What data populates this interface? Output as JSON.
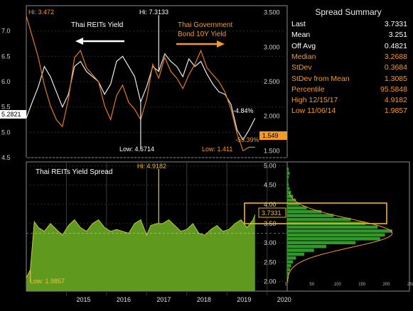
{
  "colors": {
    "background": "#000000",
    "reits_line": "#e9e9e9",
    "bond_line": "#e07b1c",
    "spread_fill": "#5f9a1f",
    "spread_line": "#c8c24a",
    "highlight": "#f0b428",
    "panel_border": "#8a8a8a"
  },
  "summary": {
    "title": "Spread Summary",
    "rows": [
      {
        "label": "Last",
        "value": "3.7331",
        "color": "white"
      },
      {
        "label": "Mean",
        "value": "3.251",
        "color": "white"
      },
      {
        "label": "Off Avg",
        "value": "0.4821",
        "color": "white"
      },
      {
        "label": "Median",
        "value": "3.2688",
        "color": "orange"
      },
      {
        "label": "StDev",
        "value": "0.3684",
        "color": "orange"
      },
      {
        "label": "StDev from Mean",
        "value": "1.3085",
        "color": "orange"
      },
      {
        "label": "Percentile",
        "value": "95.5848",
        "color": "orange"
      },
      {
        "label": "High 12/15/17",
        "value": "4.9182",
        "color": "orange"
      },
      {
        "label": "Low 11/06/14",
        "value": "1.9857",
        "color": "orange"
      }
    ]
  },
  "chart_data": [
    {
      "type": "line",
      "x_range": [
        2014.0,
        2020.5
      ],
      "left_axis": {
        "ylim": [
          4.5,
          7.5
        ],
        "ticks": [
          "4.5",
          "5.0",
          "5.5",
          "6.0",
          "6.5",
          "7.0"
        ]
      },
      "right_axis": {
        "ylim": [
          1.4,
          3.6
        ],
        "ticks": [
          "1.500",
          "2.000",
          "2.500",
          "3.000",
          "3.500"
        ]
      },
      "series": [
        {
          "name": "Thai REITs Yield",
          "axis": "left",
          "x": [
            2014.0,
            2014.15,
            2014.3,
            2014.45,
            2014.6,
            2014.75,
            2014.9,
            2015.05,
            2015.2,
            2015.35,
            2015.5,
            2015.65,
            2015.8,
            2015.95,
            2016.1,
            2016.25,
            2016.4,
            2016.55,
            2016.7,
            2016.85,
            2017.0,
            2017.15,
            2017.3,
            2017.45,
            2017.6,
            2017.75,
            2017.9,
            2018.05,
            2018.2,
            2018.35,
            2018.5,
            2018.65,
            2018.8,
            2018.95,
            2019.1,
            2019.25,
            2019.4,
            2019.55,
            2019.7
          ],
          "y": [
            5.28,
            5.6,
            5.9,
            6.3,
            6.1,
            5.8,
            5.5,
            5.75,
            6.3,
            6.4,
            6.2,
            6.1,
            6.0,
            5.75,
            5.95,
            6.4,
            6.5,
            6.3,
            6.1,
            5.6,
            5.9,
            6.3,
            6.2,
            6.55,
            6.4,
            6.3,
            6.1,
            6.45,
            6.3,
            6.4,
            6.15,
            5.95,
            5.8,
            5.75,
            5.55,
            5.05,
            4.85,
            5.05,
            5.28
          ]
        },
        {
          "name": "Thai Government Bond 10Y Yield",
          "axis": "right",
          "x": [
            2014.0,
            2014.15,
            2014.3,
            2014.45,
            2014.6,
            2014.75,
            2014.9,
            2015.05,
            2015.2,
            2015.35,
            2015.5,
            2015.65,
            2015.8,
            2015.95,
            2016.1,
            2016.25,
            2016.4,
            2016.55,
            2016.7,
            2016.85,
            2017.0,
            2017.15,
            2017.3,
            2017.45,
            2017.6,
            2017.75,
            2017.9,
            2018.05,
            2018.2,
            2018.35,
            2018.5,
            2018.65,
            2018.8,
            2018.95,
            2019.1,
            2019.25,
            2019.4,
            2019.55,
            2019.7
          ],
          "y": [
            3.45,
            3.15,
            2.85,
            2.45,
            2.15,
            1.95,
            1.85,
            2.25,
            2.85,
            2.95,
            2.7,
            2.6,
            2.5,
            2.15,
            1.95,
            2.3,
            2.45,
            2.2,
            2.1,
            1.95,
            2.25,
            2.75,
            2.55,
            2.85,
            2.65,
            2.55,
            2.4,
            2.6,
            2.75,
            2.95,
            2.7,
            2.6,
            2.5,
            2.35,
            2.1,
            1.75,
            1.5,
            1.55,
            1.55
          ]
        }
      ],
      "labels": {
        "hi_left": "Hi: 3.472",
        "hi_mid": "Hi: 7.3133",
        "low_mid": "Low: 4.6714",
        "low_right": "Low: 1.411",
        "reits_tag": "Thai REITs Yield",
        "bond_tag_line1": "Thai Government",
        "bond_tag_line2": "Bond 10Y Yield",
        "last_left": "5.2821",
        "last_right": "1.549",
        "chg_white": "-4.84%",
        "chg_orange": "-55.39%"
      }
    },
    {
      "type": "area",
      "title": "Thai REITs Yield Spread",
      "x_range": [
        2014.0,
        2020.5
      ],
      "x_ticks": [
        "2015",
        "2016",
        "2017",
        "2018",
        "2019",
        "2020"
      ],
      "ylim": [
        1.75,
        5.1
      ],
      "y_ticks": [
        "2.00",
        "2.50",
        "3.00",
        "3.50",
        "4.00",
        "4.50",
        "5.00"
      ],
      "series": [
        {
          "name": "Thai REITs Yield Spread",
          "x": [
            2014.0,
            2014.1,
            2014.2,
            2014.3,
            2014.45,
            2014.6,
            2014.75,
            2014.9,
            2015.05,
            2015.2,
            2015.35,
            2015.5,
            2015.65,
            2015.8,
            2015.95,
            2016.1,
            2016.25,
            2016.4,
            2016.55,
            2016.7,
            2016.85,
            2017.0,
            2017.1,
            2017.25,
            2017.4,
            2017.55,
            2017.7,
            2017.85,
            2018.0,
            2018.15,
            2018.3,
            2018.45,
            2018.6,
            2018.75,
            2018.9,
            2019.05,
            2019.2,
            2019.35,
            2019.5,
            2019.65,
            2019.7
          ],
          "y": [
            2.1,
            2.3,
            3.55,
            3.4,
            3.3,
            3.5,
            3.35,
            3.2,
            3.45,
            3.6,
            3.4,
            3.3,
            3.5,
            3.6,
            3.4,
            3.3,
            3.35,
            3.3,
            3.25,
            3.5,
            3.6,
            3.2,
            3.45,
            3.5,
            3.5,
            3.6,
            3.45,
            3.3,
            3.35,
            3.5,
            3.25,
            3.2,
            3.35,
            3.45,
            3.3,
            3.35,
            3.5,
            3.6,
            3.4,
            3.6,
            3.73
          ]
        }
      ],
      "labels": {
        "hi": "Hi: 4.9182",
        "low": "Low: 1.9857",
        "last": "3.7331"
      },
      "distribution": {
        "x_ticks": [
          "0",
          "50",
          "100",
          "150",
          "200",
          "250"
        ],
        "xlim": [
          0,
          250
        ],
        "bins": [
          {
            "y": 4.9,
            "count": 3
          },
          {
            "y": 4.8,
            "count": 5
          },
          {
            "y": 4.7,
            "count": 3
          },
          {
            "y": 4.6,
            "count": 2
          },
          {
            "y": 4.5,
            "count": 3
          },
          {
            "y": 4.4,
            "count": 5
          },
          {
            "y": 4.3,
            "count": 8
          },
          {
            "y": 4.2,
            "count": 12
          },
          {
            "y": 4.1,
            "count": 18
          },
          {
            "y": 4.0,
            "count": 25
          },
          {
            "y": 3.9,
            "count": 40
          },
          {
            "y": 3.8,
            "count": 70
          },
          {
            "y": 3.7,
            "count": 95
          },
          {
            "y": 3.6,
            "count": 130
          },
          {
            "y": 3.5,
            "count": 160
          },
          {
            "y": 3.4,
            "count": 185
          },
          {
            "y": 3.3,
            "count": 215
          },
          {
            "y": 3.2,
            "count": 200
          },
          {
            "y": 3.1,
            "count": 190
          },
          {
            "y": 3.0,
            "count": 140
          },
          {
            "y": 2.9,
            "count": 80
          },
          {
            "y": 2.8,
            "count": 55
          },
          {
            "y": 2.7,
            "count": 35
          },
          {
            "y": 2.6,
            "count": 18
          },
          {
            "y": 2.5,
            "count": 12
          },
          {
            "y": 2.4,
            "count": 8
          },
          {
            "y": 2.3,
            "count": 6
          },
          {
            "y": 2.2,
            "count": 4
          },
          {
            "y": 2.1,
            "count": 3
          },
          {
            "y": 2.0,
            "count": 2
          }
        ]
      }
    }
  ]
}
